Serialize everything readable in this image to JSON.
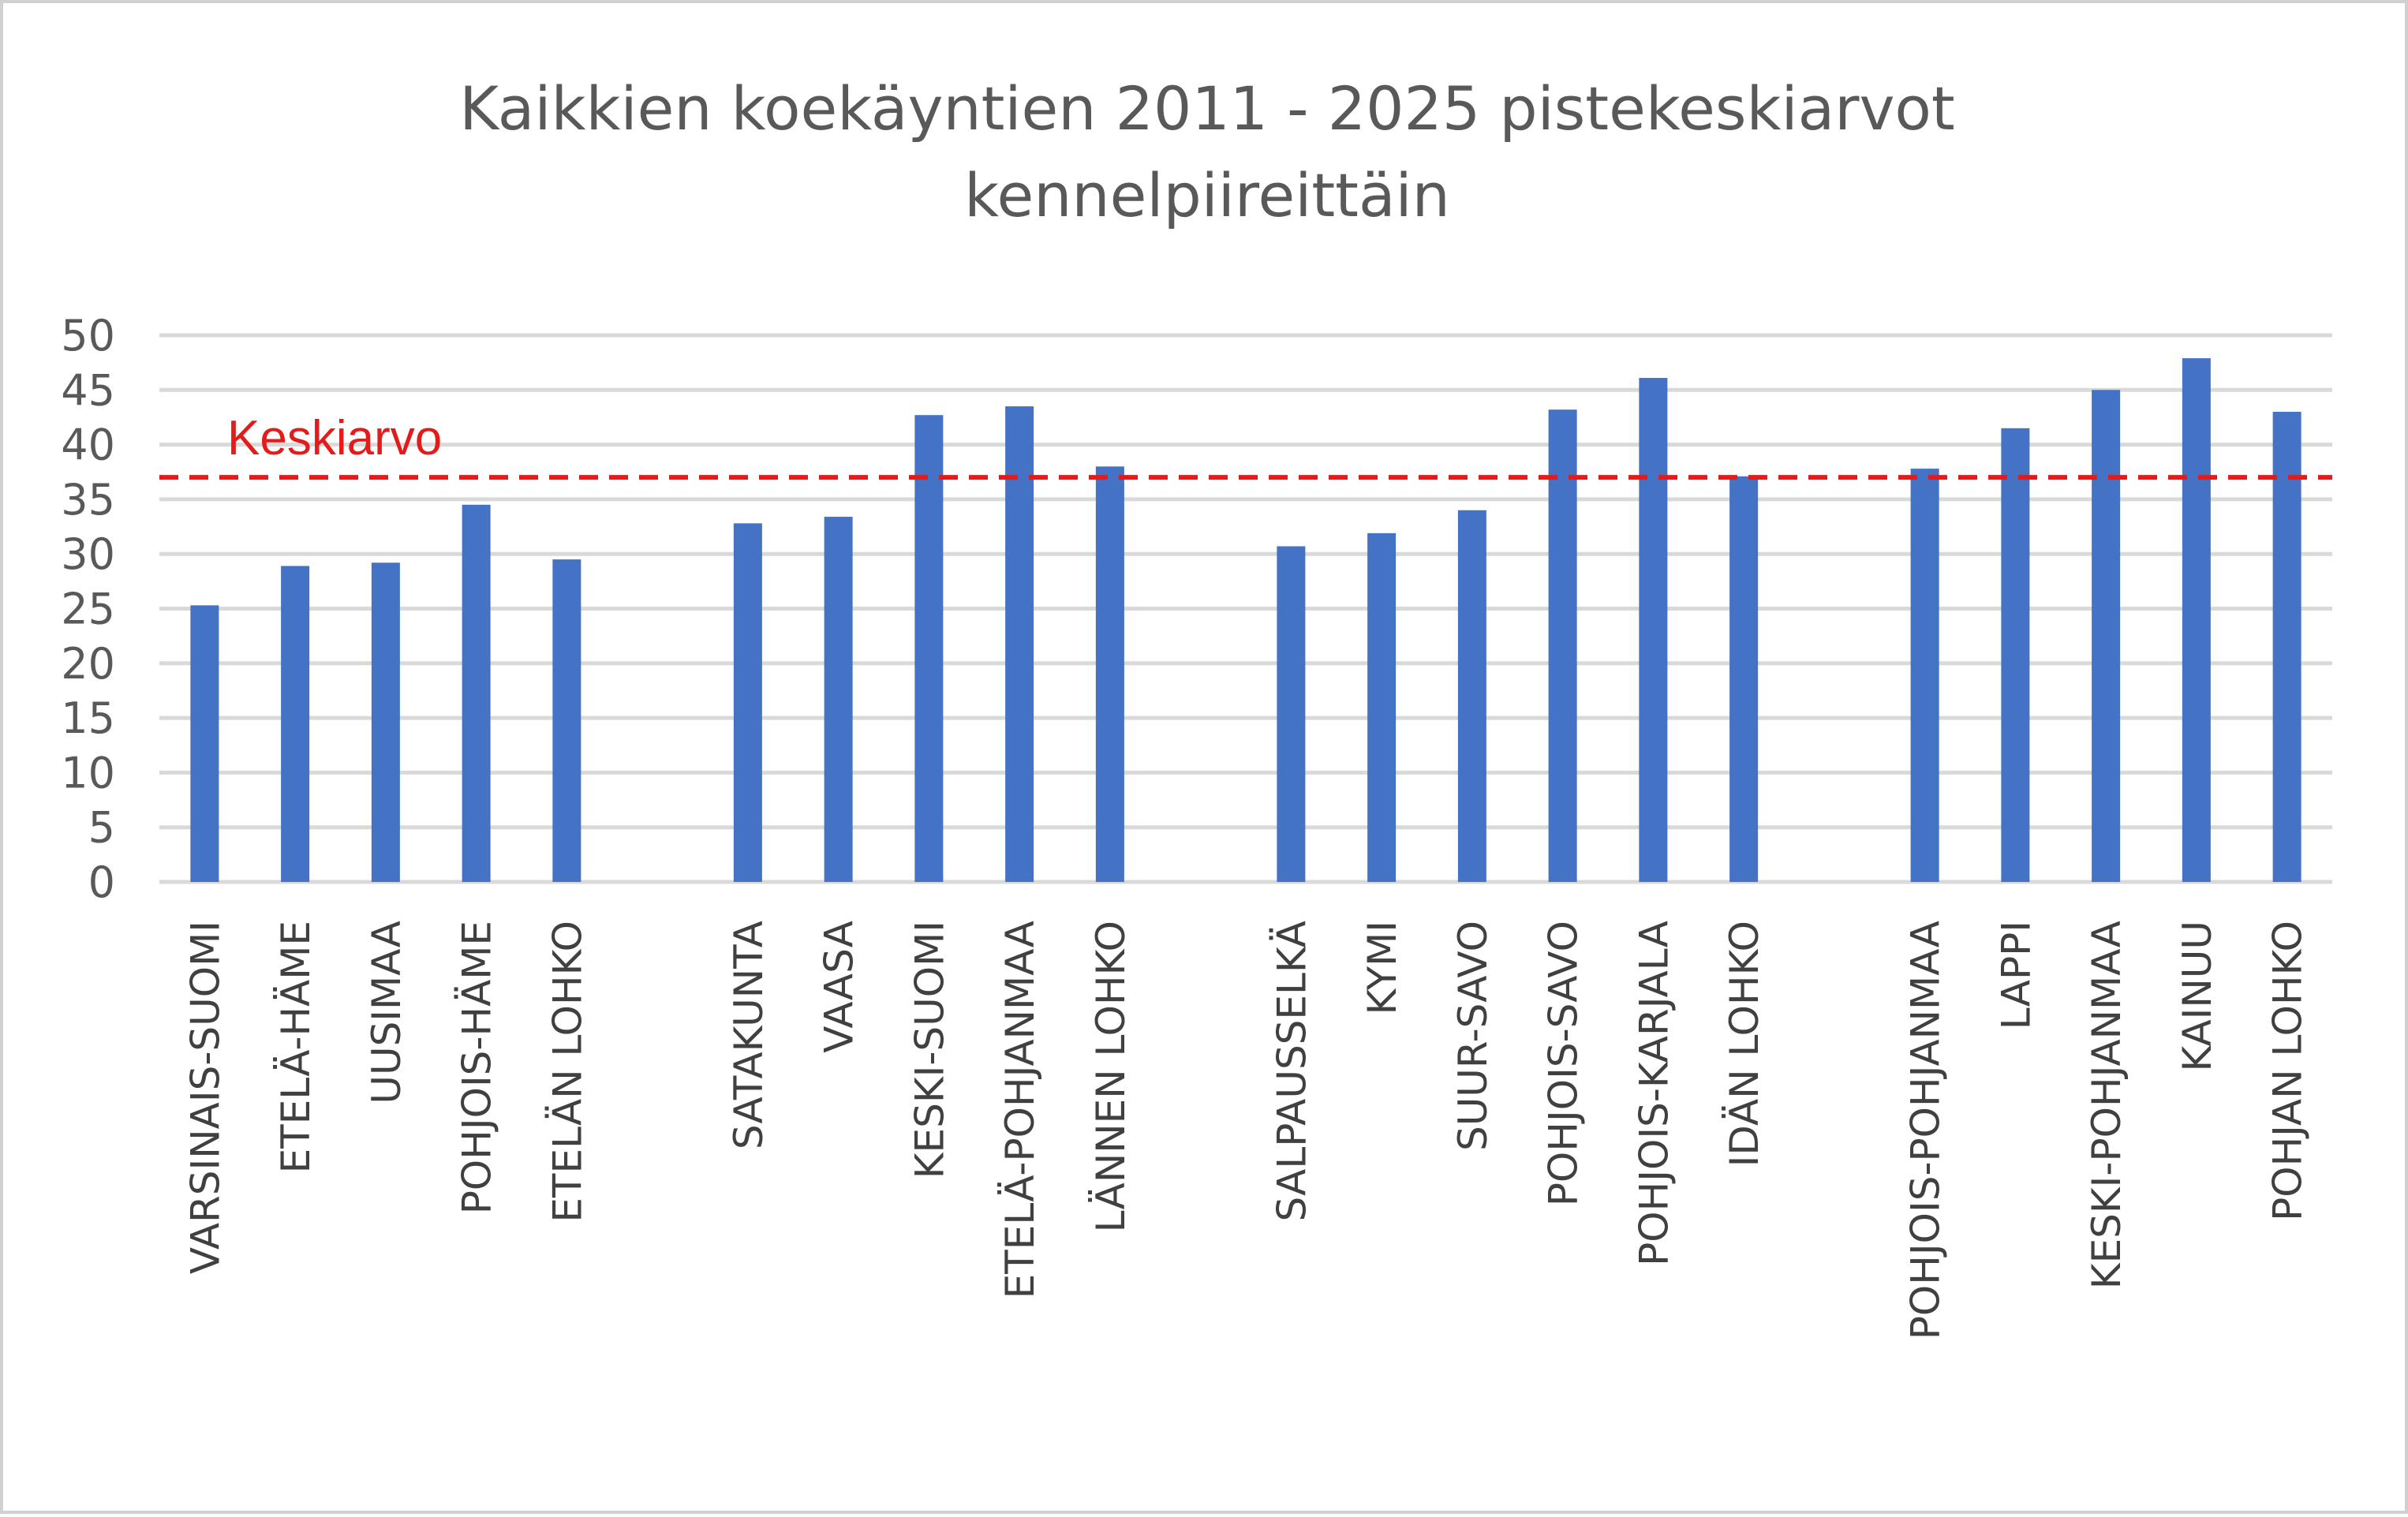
{
  "chart_data": {
    "type": "bar",
    "title_lines": [
      "Kaikkien koekäyntien 2011 - 2025 pistekeskiarvot",
      "kennelpiireittäin"
    ],
    "xlabel": "",
    "ylabel": "",
    "ylim": [
      0,
      50
    ],
    "yticks": [
      "0",
      "5",
      "10",
      "15",
      "20",
      "25",
      "30",
      "35",
      "40",
      "45",
      "50"
    ],
    "grid": true,
    "legend": "none",
    "bar_color": "#4472c4",
    "categories": [
      "VARSINAIS-SUOMI",
      "ETELÄ-HÄME",
      "UUSIMAA",
      "POHJOIS-HÄME",
      "ETELÄN LOHKO",
      "",
      "SATAKUNTA",
      "VAASA",
      "KESKI-SUOMI",
      "ETELÄ-POHJANMAA",
      "LÄNNEN LOHKO",
      "",
      "SALPAUSSELKÄ",
      "KYMI",
      "SUUR-SAVO",
      "POHJOIS-SAVO",
      "POHJOIS-KARJALA",
      "IDÄN LOHKO",
      "",
      "POHJOIS-POHJANMAA",
      "LAPPI",
      "KESKI-POHJANMAA",
      "KAINUU",
      "POHJAN LOHKO"
    ],
    "values": [
      25.3,
      28.9,
      29.2,
      34.5,
      29.5,
      null,
      32.8,
      33.4,
      42.7,
      43.5,
      38.0,
      null,
      30.7,
      31.9,
      34.0,
      43.2,
      46.1,
      37.1,
      null,
      37.8,
      41.5,
      45.0,
      47.9,
      43.0
    ],
    "reference_line": {
      "label": "Keskiarvo",
      "value": 37.0,
      "color": "#e31b1b"
    }
  }
}
